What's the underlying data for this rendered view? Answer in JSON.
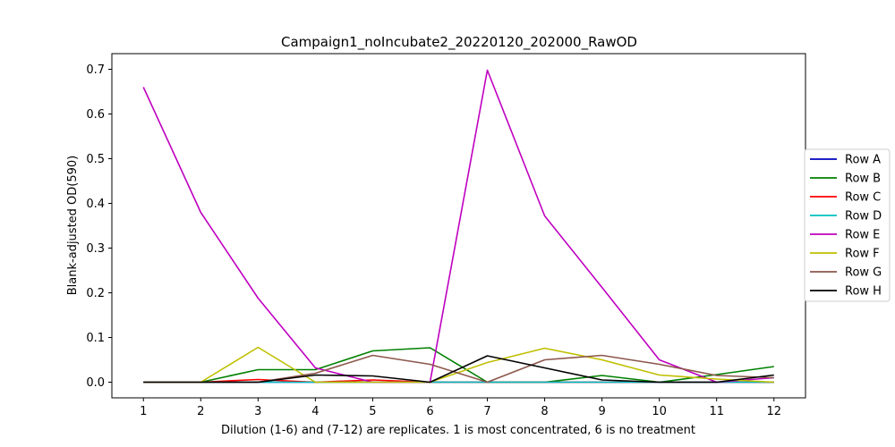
{
  "chart_data": {
    "type": "line",
    "title": "Campaign1_noIncubate2_20220120_202000_RawOD",
    "xlabel": "Dilution (1-6) and (7-12) are replicates. 1 is most concentrated, 6 is no treatment",
    "ylabel": "Blank-adjusted OD(590)",
    "x": [
      1,
      2,
      3,
      4,
      5,
      6,
      7,
      8,
      9,
      10,
      11,
      12
    ],
    "xlim": [
      0.45,
      12.55
    ],
    "ylim": [
      -0.035,
      0.735
    ],
    "x_ticks": [
      "1",
      "2",
      "3",
      "4",
      "5",
      "6",
      "7",
      "8",
      "9",
      "10",
      "11",
      "12"
    ],
    "y_ticks": [
      "0.0",
      "0.1",
      "0.2",
      "0.3",
      "0.4",
      "0.5",
      "0.6",
      "0.7"
    ],
    "y_tick_values": [
      0,
      0.1,
      0.2,
      0.3,
      0.4,
      0.5,
      0.6,
      0.7
    ],
    "legend_position": "right",
    "series": [
      {
        "name": "Row A",
        "color": "#0000bf",
        "values": [
          0,
          0,
          0,
          0,
          0,
          0,
          0,
          0,
          0,
          0,
          0,
          0
        ]
      },
      {
        "name": "Row B",
        "color": "#008000",
        "values": [
          0,
          0,
          0.028,
          0.028,
          0.07,
          0.077,
          0,
          0,
          0.015,
          0,
          0.017,
          0.035
        ]
      },
      {
        "name": "Row C",
        "color": "#ff0000",
        "values": [
          0,
          0,
          0.006,
          0,
          0.005,
          0,
          0,
          0,
          0,
          0,
          0,
          0
        ]
      },
      {
        "name": "Row D",
        "color": "#00bfbf",
        "values": [
          0,
          0,
          0,
          0,
          0,
          0,
          0,
          0,
          0,
          0,
          0,
          0
        ]
      },
      {
        "name": "Row E",
        "color": "#bf00bf",
        "values": [
          0.66,
          0.38,
          0.188,
          0.032,
          0,
          0,
          0.698,
          0.372,
          0.212,
          0.05,
          0,
          0.01
        ]
      },
      {
        "name": "Row F",
        "color": "#bfbf00",
        "values": [
          0,
          0,
          0.078,
          0,
          0,
          0,
          0.044,
          0.076,
          0.05,
          0.016,
          0.007,
          0
        ]
      },
      {
        "name": "Row G",
        "color": "#8c564b",
        "values": [
          0,
          0,
          0,
          0.02,
          0.06,
          0.04,
          0,
          0.05,
          0.06,
          0.04,
          0.015,
          0.01
        ]
      },
      {
        "name": "Row H",
        "color": "#000000",
        "values": [
          0,
          0,
          0,
          0.016,
          0.014,
          0,
          0.059,
          0.032,
          0.005,
          0,
          0,
          0.016
        ]
      }
    ]
  }
}
